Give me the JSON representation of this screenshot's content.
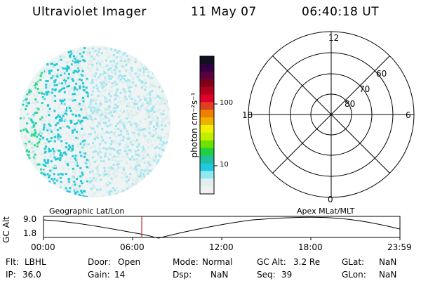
{
  "header": {
    "instrument": "Ultraviolet Imager",
    "date": "11 May 07",
    "time": "06:40:18 UT"
  },
  "colorbar": {
    "unit_label": "photon cm⁻²s⁻¹",
    "ticks": [
      "100",
      "10"
    ],
    "colors": [
      "#101020",
      "#300040",
      "#5a0040",
      "#80001a",
      "#b0001a",
      "#e0002a",
      "#e04020",
      "#f08000",
      "#f0b000",
      "#f0f000",
      "#c0f000",
      "#70e000",
      "#20d040",
      "#20c0a0",
      "#20c8e0",
      "#90e8f0",
      "#e0f0f0",
      "#f0f0f0"
    ]
  },
  "polar_grid": {
    "mlt_labels": {
      "top": "12",
      "bottom": "0",
      "left": "18",
      "right": "6"
    },
    "lat_labels": [
      "60",
      "70",
      "80"
    ]
  },
  "timeline": {
    "left_label": "Geographic Lat/Lon",
    "right_label": "Apex MLat/MLT",
    "axis_title": "GC Alt",
    "y_ticks": [
      "9.0",
      "1.8"
    ],
    "x_ticks": [
      "00:00",
      "06:00",
      "12:00",
      "18:00",
      "23:59"
    ]
  },
  "footer": {
    "flt_label": "Flt:",
    "flt_value": "LBHL",
    "ip_label": "IP:",
    "ip_value": "36.0",
    "door_label": "Door:",
    "door_value": "Open",
    "gain_label": "Gain:",
    "gain_value": "14",
    "mode_label": "Mode:",
    "mode_value": "Normal",
    "dsp_label": "Dsp:",
    "dsp_value": "NaN",
    "gcalt_label": "GC Alt:",
    "gcalt_value": "3.2 Re",
    "seq_label": "Seq:",
    "seq_value": "39",
    "glat_label": "GLat:",
    "glat_value": "NaN",
    "glon_label": "GLon:",
    "glon_value": "NaN"
  }
}
